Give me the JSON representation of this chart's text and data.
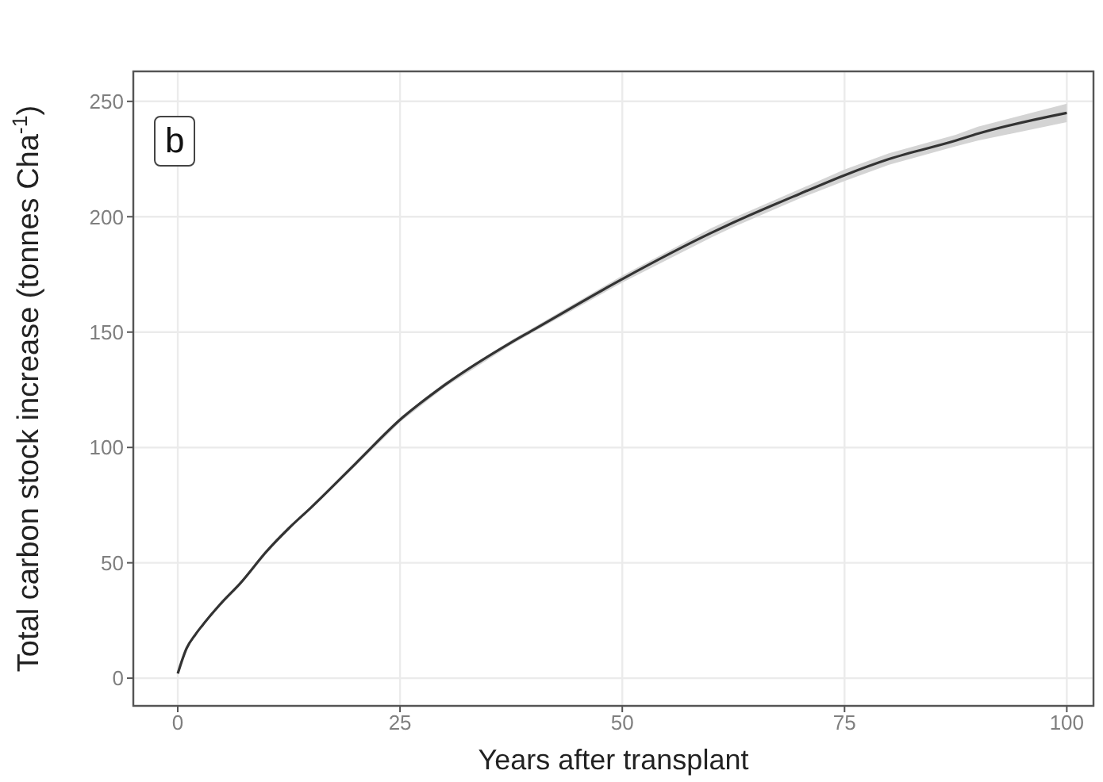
{
  "chart_data": {
    "type": "line",
    "xlabel": "Years after transplant",
    "ylabel": "Total carbon stock increase (tonnes Cha$^{-1}$)",
    "annotations": [
      "b"
    ],
    "x": [
      0,
      1,
      2,
      3,
      5,
      7,
      10,
      12.5,
      15,
      20,
      25,
      30,
      37.5,
      40,
      50,
      60,
      62.5,
      70,
      75,
      80,
      87.5,
      90,
      100
    ],
    "series": [
      {
        "color": "#333333",
        "values": [
          2,
          13,
          19,
          24,
          33,
          41,
          55,
          65,
          74,
          93,
          112,
          127,
          145.5,
          151,
          173,
          193,
          197.5,
          210,
          218,
          225,
          233,
          236,
          245
        ],
        "lower": [
          2,
          12.5,
          18.5,
          23.5,
          32.5,
          40.5,
          54.5,
          64.5,
          73.5,
          92,
          111,
          126,
          144.5,
          150,
          171.5,
          191,
          195.5,
          208,
          215.5,
          222.5,
          230.5,
          233,
          241
        ],
        "upper": [
          2,
          13.5,
          19.5,
          24.5,
          33.5,
          41.5,
          55.5,
          65.5,
          74.5,
          94,
          113,
          128,
          146.5,
          152,
          174.5,
          195,
          199.5,
          212,
          220.5,
          227.5,
          235.5,
          239,
          249
        ]
      }
    ],
    "xlim": [
      -5,
      103
    ],
    "xticks": [
      0,
      25,
      50,
      75,
      100
    ],
    "ylim": [
      -12,
      263
    ],
    "yticks": [
      0,
      50,
      100,
      150,
      200,
      250
    ],
    "grid": true,
    "marker": "none",
    "line_style": "solid"
  }
}
